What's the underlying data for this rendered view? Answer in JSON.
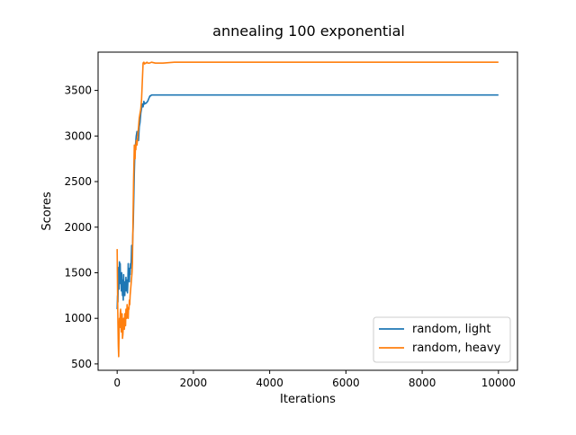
{
  "chart_data": {
    "type": "line",
    "title": "annealing 100 exponential",
    "xlabel": "Iterations",
    "ylabel": "Scores",
    "xlim": [
      -500,
      10500
    ],
    "ylim": [
      430,
      3920
    ],
    "xticks": [
      0,
      2000,
      4000,
      6000,
      8000,
      10000
    ],
    "yticks": [
      500,
      1000,
      1500,
      2000,
      2500,
      3000,
      3500
    ],
    "grid": false,
    "legend_position": "lower right",
    "series": [
      {
        "name": "random, light",
        "color": "#1f77b4",
        "x": [
          0,
          10,
          20,
          30,
          40,
          50,
          60,
          70,
          80,
          90,
          100,
          110,
          120,
          130,
          140,
          150,
          160,
          170,
          180,
          190,
          200,
          210,
          220,
          230,
          240,
          250,
          260,
          270,
          280,
          290,
          300,
          310,
          320,
          330,
          340,
          350,
          360,
          370,
          380,
          390,
          400,
          410,
          420,
          430,
          440,
          450,
          460,
          470,
          480,
          490,
          500,
          520,
          540,
          560,
          580,
          600,
          620,
          640,
          660,
          680,
          700,
          720,
          740,
          760,
          780,
          800,
          820,
          840,
          860,
          880,
          900,
          950,
          1000,
          1100,
          1200,
          1300,
          1400,
          1500,
          2000,
          4000,
          6000,
          8000,
          10000
        ],
        "values": [
          1100,
          1250,
          1180,
          1400,
          1560,
          1320,
          1620,
          1500,
          1600,
          1380,
          1450,
          1300,
          1500,
          1350,
          1250,
          1420,
          1200,
          1480,
          1300,
          1380,
          1250,
          1400,
          1320,
          1450,
          1300,
          1350,
          1420,
          1280,
          1380,
          1600,
          1450,
          1550,
          1400,
          1500,
          1480,
          1600,
          1550,
          1650,
          1800,
          1700,
          1750,
          1900,
          2000,
          2200,
          2400,
          2600,
          2750,
          2850,
          2900,
          2950,
          3000,
          3050,
          3000,
          2950,
          3100,
          3150,
          3250,
          3300,
          3350,
          3320,
          3380,
          3350,
          3360,
          3360,
          3370,
          3380,
          3400,
          3420,
          3440,
          3440,
          3450,
          3450,
          3450,
          3450,
          3450,
          3450,
          3450,
          3450,
          3450,
          3450,
          3450,
          3450,
          3450
        ]
      },
      {
        "name": "random, heavy",
        "color": "#ff7f0e",
        "x": [
          0,
          10,
          20,
          30,
          40,
          50,
          60,
          70,
          80,
          90,
          100,
          110,
          120,
          130,
          140,
          150,
          160,
          170,
          180,
          190,
          200,
          210,
          220,
          230,
          240,
          250,
          260,
          270,
          280,
          290,
          300,
          310,
          320,
          330,
          340,
          350,
          360,
          370,
          380,
          390,
          400,
          410,
          420,
          430,
          440,
          450,
          460,
          470,
          480,
          490,
          500,
          520,
          540,
          560,
          580,
          600,
          620,
          640,
          660,
          680,
          700,
          720,
          740,
          760,
          780,
          800,
          850,
          900,
          1000,
          1200,
          1500,
          1800,
          2000,
          4000,
          6000,
          8000,
          10000
        ],
        "values": [
          1760,
          1300,
          950,
          700,
          580,
          850,
          1000,
          900,
          1050,
          1100,
          1000,
          850,
          950,
          1050,
          780,
          820,
          900,
          1000,
          950,
          880,
          1050,
          1000,
          920,
          1100,
          1050,
          1000,
          1150,
          1100,
          1050,
          1000,
          1120,
          1100,
          1200,
          1150,
          1250,
          1300,
          1350,
          1400,
          1450,
          1500,
          1600,
          1900,
          2200,
          2500,
          2700,
          2900,
          2800,
          2750,
          2900,
          2850,
          2950,
          2900,
          3000,
          3100,
          3200,
          3250,
          3300,
          3400,
          3600,
          3800,
          3810,
          3790,
          3800,
          3800,
          3810,
          3800,
          3800,
          3810,
          3800,
          3800,
          3810,
          3810,
          3810,
          3810,
          3810,
          3810,
          3810
        ]
      }
    ]
  }
}
